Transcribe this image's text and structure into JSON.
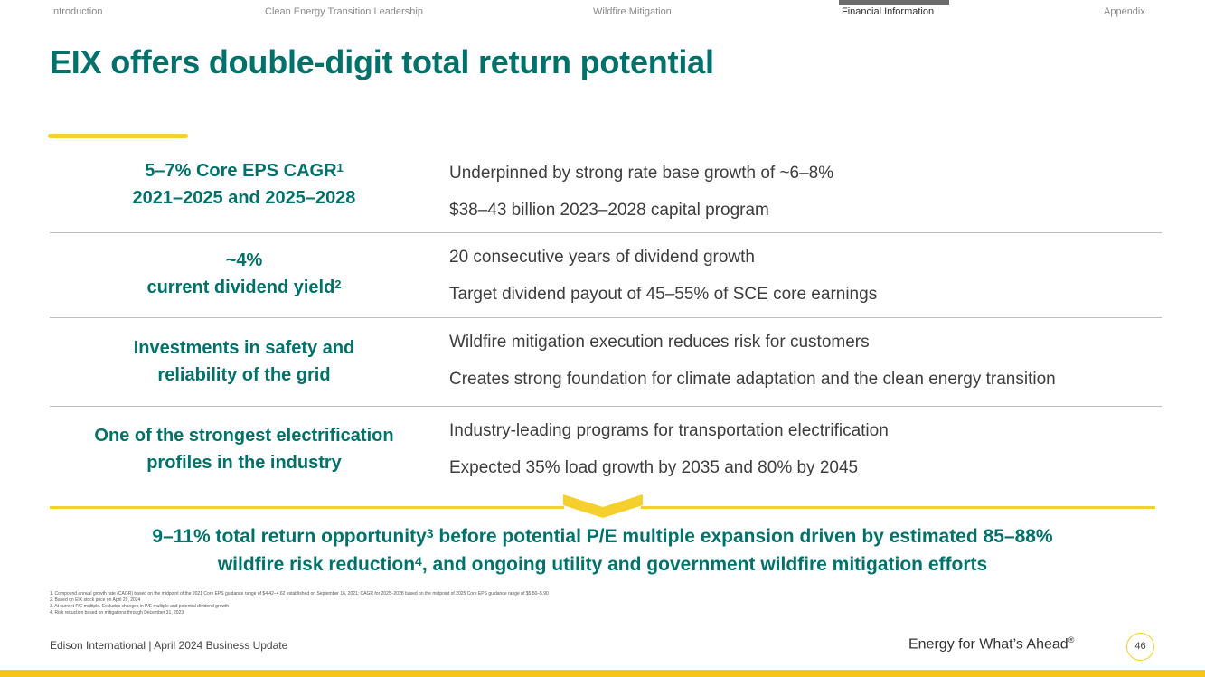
{
  "nav": {
    "items": [
      {
        "label": "Introduction"
      },
      {
        "label": "Clean Energy Transition Leadership"
      },
      {
        "label": "Wildfire Mitigation"
      },
      {
        "label": "Financial Information",
        "active": true
      },
      {
        "label": "Appendix"
      }
    ]
  },
  "title": "EIX offers double-digit total return potential",
  "rows": [
    {
      "left_line1": "5–7% Core EPS CAGR",
      "left_sup1": "1",
      "left_line2": "2021–2025 and 2025–2028",
      "right": [
        "Underpinned by strong rate base growth of ~6–8%",
        "$38–43 billion 2023–2028 capital program"
      ]
    },
    {
      "left_line1": "~4%",
      "left_line2": "current dividend yield",
      "left_sup2": "2",
      "right": [
        "20 consecutive years of dividend growth",
        "Target dividend payout of 45–55% of SCE core earnings"
      ]
    },
    {
      "left_line1": "Investments in safety and",
      "left_line2": "reliability of the grid",
      "right": [
        "Wildfire mitigation execution reduces risk for customers",
        "Creates strong foundation for climate adaptation and the clean energy transition"
      ]
    },
    {
      "left_line1": "One of the strongest electrification",
      "left_line2": "profiles in the industry",
      "right": [
        "Industry-leading programs for transportation electrification",
        "Expected 35% load growth by 2035 and 80% by 2045"
      ]
    }
  ],
  "total_return": {
    "part1": "9–11% total return opportunity",
    "sup1": "3",
    "part2": " before potential P/E multiple expansion driven by estimated 85–88%",
    "part3": "wildfire risk reduction",
    "sup2": "4",
    "part4": ", and ongoing utility and government wildfire mitigation efforts"
  },
  "footnotes": [
    "1.  Compound annual growth rate (CAGR) based on the midpoint of the 2021 Core EPS guidance range of $4.42–4.62 established on September 16, 2021; CAGR for 2025–2028 based on the midpoint of 2025 Core EPS guidance range of $5.50–5.90",
    "2.  Based on EIX stock price on April 29, 2024",
    "3.  At current P/E multiple. Excludes changes in P/E multiple and potential dividend growth",
    "4.  Risk reduction based on mitigations through December 31, 2023"
  ],
  "footer": {
    "left": "Edison International  |  April 2024 Business Update",
    "tagline": "Energy for What’s Ahead",
    "tagline_mark": "®",
    "page_number": "46"
  },
  "colors": {
    "teal": "#00726b",
    "yellow": "#f5cf2c",
    "nav_active": "#6b6b6b"
  }
}
